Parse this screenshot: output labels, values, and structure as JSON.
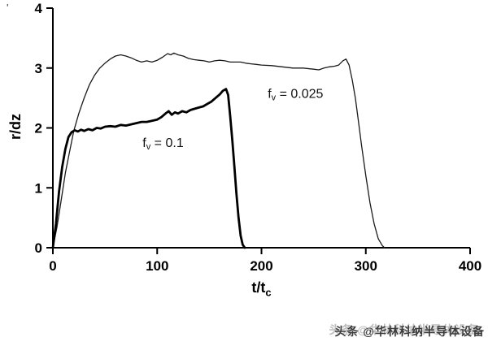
{
  "figure": {
    "watermark": "头条 @华林科纳半导体设备",
    "corner_mark": "'"
  },
  "chart_data": {
    "type": "line",
    "title": "",
    "xlabel": "t/tc",
    "xlabel_parts": {
      "main": "t/t",
      "sub": "c"
    },
    "ylabel": "r/dz",
    "xlim": [
      0,
      400
    ],
    "ylim": [
      0,
      4
    ],
    "xticks": [
      0,
      100,
      200,
      300,
      400
    ],
    "yticks": [
      0,
      1,
      2,
      3,
      4
    ],
    "grid": false,
    "legend_position": "none",
    "series": [
      {
        "name": "fv = 0.025",
        "color": "#1a1a1a",
        "stroke_width": 1.3,
        "points": [
          [
            0,
            0
          ],
          [
            4,
            0.35
          ],
          [
            8,
            0.8
          ],
          [
            12,
            1.25
          ],
          [
            16,
            1.6
          ],
          [
            20,
            1.95
          ],
          [
            25,
            2.25
          ],
          [
            30,
            2.5
          ],
          [
            35,
            2.72
          ],
          [
            40,
            2.88
          ],
          [
            45,
            3.0
          ],
          [
            50,
            3.08
          ],
          [
            55,
            3.15
          ],
          [
            60,
            3.2
          ],
          [
            65,
            3.22
          ],
          [
            70,
            3.2
          ],
          [
            75,
            3.17
          ],
          [
            80,
            3.13
          ],
          [
            85,
            3.1
          ],
          [
            90,
            3.12
          ],
          [
            95,
            3.1
          ],
          [
            100,
            3.13
          ],
          [
            105,
            3.18
          ],
          [
            110,
            3.24
          ],
          [
            113,
            3.22
          ],
          [
            116,
            3.25
          ],
          [
            120,
            3.22
          ],
          [
            125,
            3.2
          ],
          [
            130,
            3.16
          ],
          [
            135,
            3.14
          ],
          [
            140,
            3.13
          ],
          [
            145,
            3.12
          ],
          [
            150,
            3.1
          ],
          [
            155,
            3.12
          ],
          [
            160,
            3.13
          ],
          [
            165,
            3.12
          ],
          [
            170,
            3.1
          ],
          [
            175,
            3.1
          ],
          [
            180,
            3.1
          ],
          [
            185,
            3.08
          ],
          [
            190,
            3.07
          ],
          [
            195,
            3.06
          ],
          [
            200,
            3.05
          ],
          [
            210,
            3.04
          ],
          [
            220,
            3.02
          ],
          [
            230,
            3.0
          ],
          [
            240,
            3.0
          ],
          [
            250,
            2.98
          ],
          [
            255,
            2.97
          ],
          [
            260,
            3.0
          ],
          [
            265,
            3.02
          ],
          [
            270,
            3.03
          ],
          [
            274,
            3.05
          ],
          [
            278,
            3.12
          ],
          [
            281,
            3.15
          ],
          [
            284,
            3.05
          ],
          [
            287,
            2.8
          ],
          [
            290,
            2.5
          ],
          [
            293,
            2.1
          ],
          [
            296,
            1.7
          ],
          [
            300,
            1.2
          ],
          [
            304,
            0.75
          ],
          [
            308,
            0.4
          ],
          [
            312,
            0.15
          ],
          [
            316,
            0.03
          ],
          [
            318,
            0
          ]
        ]
      },
      {
        "name": "fv = 0.1",
        "color": "#000000",
        "stroke_width": 2.8,
        "points": [
          [
            0,
            0
          ],
          [
            3,
            0.4
          ],
          [
            6,
            0.95
          ],
          [
            9,
            1.35
          ],
          [
            12,
            1.65
          ],
          [
            15,
            1.85
          ],
          [
            18,
            1.93
          ],
          [
            21,
            1.96
          ],
          [
            24,
            1.94
          ],
          [
            27,
            1.97
          ],
          [
            30,
            1.95
          ],
          [
            34,
            1.98
          ],
          [
            38,
            1.96
          ],
          [
            42,
            2.0
          ],
          [
            46,
            1.99
          ],
          [
            50,
            2.02
          ],
          [
            55,
            2.03
          ],
          [
            60,
            2.02
          ],
          [
            65,
            2.05
          ],
          [
            70,
            2.04
          ],
          [
            75,
            2.06
          ],
          [
            80,
            2.08
          ],
          [
            85,
            2.1
          ],
          [
            90,
            2.1
          ],
          [
            95,
            2.12
          ],
          [
            100,
            2.14
          ],
          [
            104,
            2.18
          ],
          [
            108,
            2.24
          ],
          [
            111,
            2.28
          ],
          [
            114,
            2.22
          ],
          [
            117,
            2.26
          ],
          [
            120,
            2.24
          ],
          [
            124,
            2.28
          ],
          [
            128,
            2.26
          ],
          [
            132,
            2.3
          ],
          [
            136,
            2.32
          ],
          [
            140,
            2.34
          ],
          [
            144,
            2.36
          ],
          [
            148,
            2.4
          ],
          [
            152,
            2.44
          ],
          [
            156,
            2.5
          ],
          [
            160,
            2.56
          ],
          [
            163,
            2.62
          ],
          [
            166,
            2.65
          ],
          [
            168,
            2.55
          ],
          [
            170,
            2.2
          ],
          [
            172,
            1.8
          ],
          [
            174,
            1.35
          ],
          [
            176,
            0.9
          ],
          [
            178,
            0.5
          ],
          [
            180,
            0.2
          ],
          [
            182,
            0.05
          ],
          [
            184,
            0
          ]
        ]
      }
    ],
    "annotations": [
      {
        "main": "f",
        "sub": "v",
        "rest": " = 0.025",
        "x": 206,
        "y": 2.5
      },
      {
        "main": "f",
        "sub": "v",
        "rest": " = 0.1",
        "x": 86,
        "y": 1.68
      }
    ]
  }
}
